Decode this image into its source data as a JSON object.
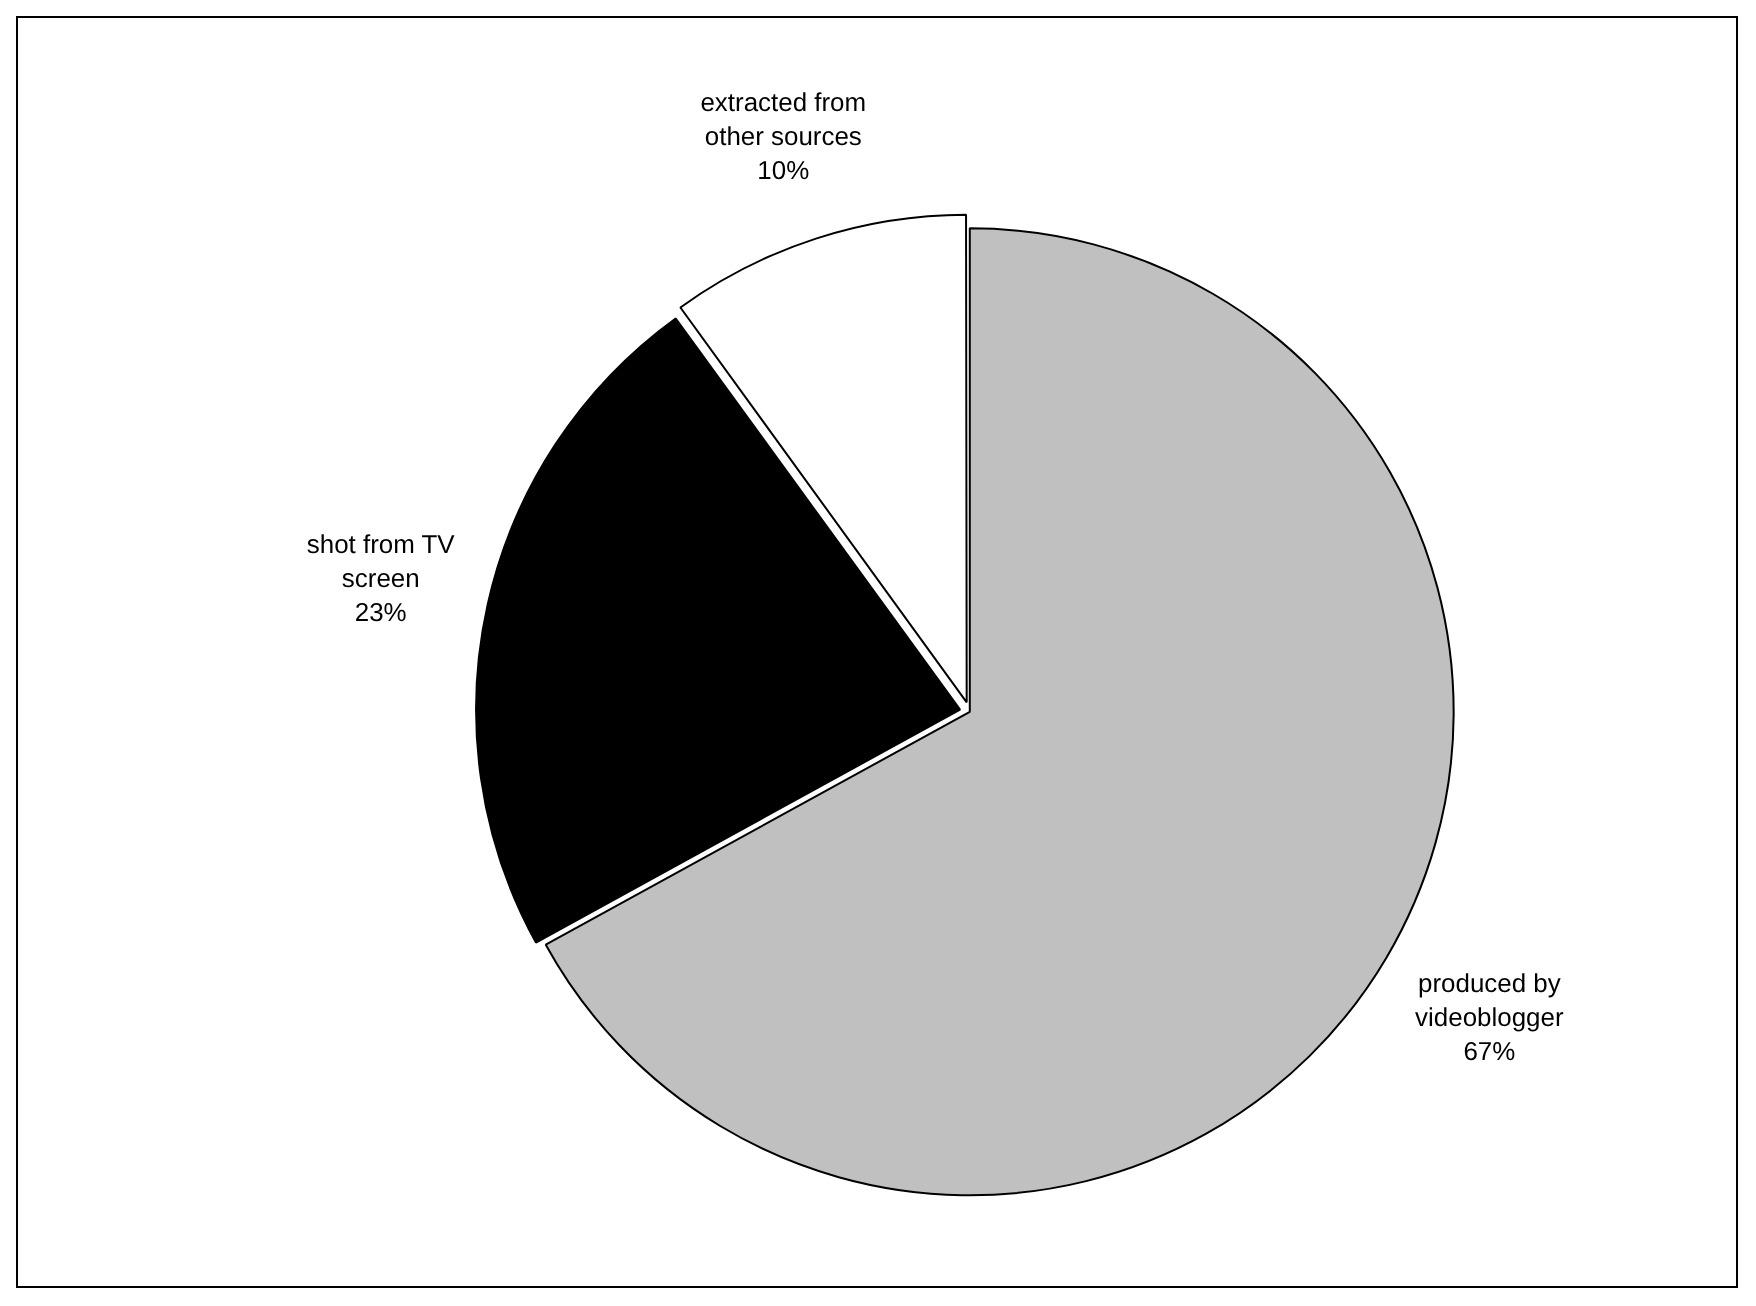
{
  "chart_data": {
    "type": "pie",
    "categories": [
      "produced by videoblogger",
      "shot from TV screen",
      "extracted from other sources"
    ],
    "values": [
      67,
      23,
      10
    ],
    "colors": [
      "#c0c0c0",
      "#000000",
      "#ffffff"
    ],
    "value_labels": [
      "67%",
      "23%",
      "10%"
    ],
    "legend": false
  }
}
